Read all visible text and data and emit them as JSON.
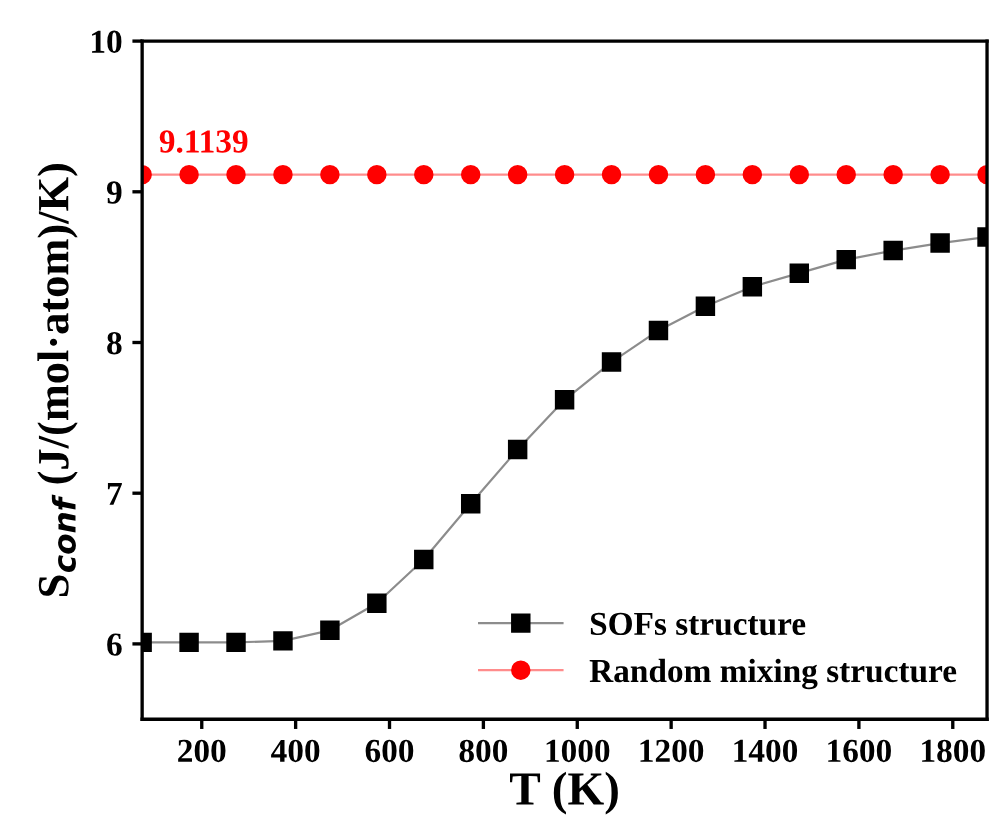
{
  "chart_data": {
    "type": "line",
    "xlabel": "T (K)",
    "ylabel": "S$_{conf}$ (J/(mol·atom)/K)",
    "x": [
      73,
      173,
      273,
      373,
      473,
      573,
      673,
      773,
      873,
      973,
      1073,
      1173,
      1273,
      1373,
      1473,
      1573,
      1673,
      1773,
      1873
    ],
    "series": [
      {
        "name": "SOFs structure",
        "color": "#000000",
        "marker": "square",
        "values": [
          6.01,
          6.01,
          6.01,
          6.02,
          6.09,
          6.27,
          6.56,
          6.93,
          7.29,
          7.62,
          7.87,
          8.08,
          8.24,
          8.37,
          8.46,
          8.55,
          8.61,
          8.66,
          8.7
        ]
      },
      {
        "name": "Random mixing structure",
        "color": "#ff0000",
        "marker": "circle",
        "values": [
          9.1139,
          9.1139,
          9.1139,
          9.1139,
          9.1139,
          9.1139,
          9.1139,
          9.1139,
          9.1139,
          9.1139,
          9.1139,
          9.1139,
          9.1139,
          9.1139,
          9.1139,
          9.1139,
          9.1139,
          9.1139,
          9.1139
        ]
      }
    ],
    "annotations": [
      {
        "text": "9.1139",
        "x": 73,
        "y": 9.1139
      }
    ],
    "xlim": [
      73,
      1873
    ],
    "xticks": [
      200,
      400,
      600,
      800,
      1000,
      1200,
      1400,
      1600,
      1800
    ],
    "ylim": [
      5.5,
      10
    ],
    "yticks": [
      6,
      7,
      8,
      9,
      10
    ],
    "grid": false,
    "legend": "bottom right",
    "line_style": "solid"
  }
}
